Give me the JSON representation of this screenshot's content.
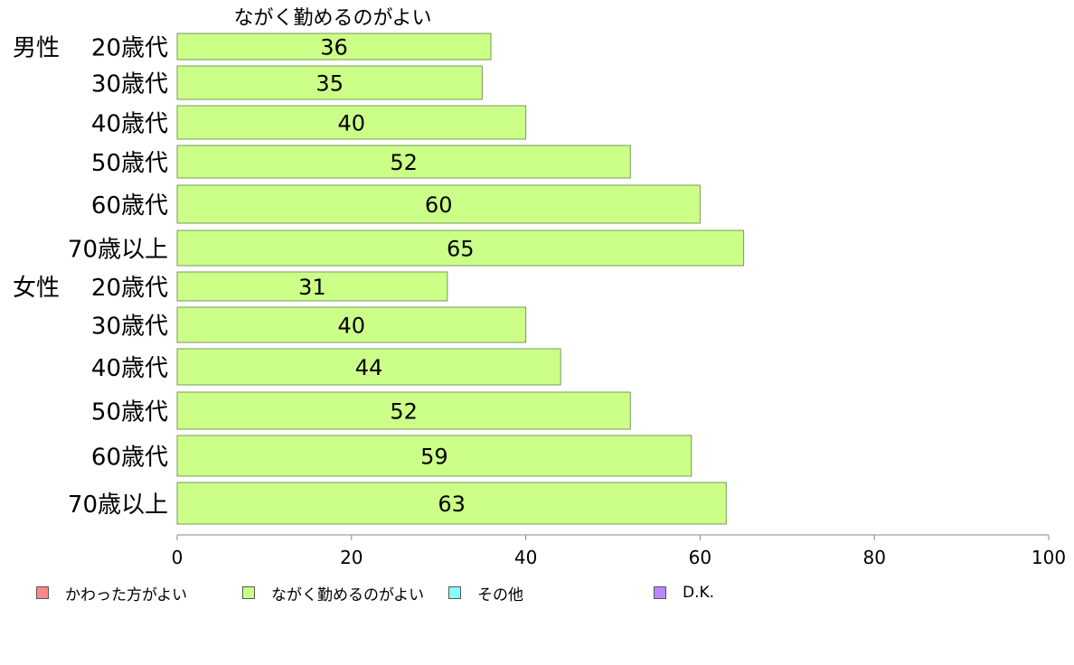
{
  "chart_data": {
    "type": "bar",
    "orientation": "horizontal",
    "title": "ながく勤めるのがよい",
    "groups": [
      {
        "label": "男性",
        "first_index": 0
      },
      {
        "label": "女性",
        "first_index": 6
      }
    ],
    "categories": [
      "20歳代",
      "30歳代",
      "40歳代",
      "50歳代",
      "60歳代",
      "70歳以上",
      "20歳代",
      "30歳代",
      "40歳代",
      "50歳代",
      "60歳代",
      "70歳以上"
    ],
    "series": [
      {
        "name": "ながく勤めるのがよい",
        "values": [
          36,
          35,
          40,
          52,
          60,
          65,
          31,
          40,
          44,
          52,
          59,
          63
        ],
        "color": "#ccff88"
      }
    ],
    "xlim": [
      0,
      100
    ],
    "xticks": [
      0,
      20,
      40,
      60,
      80,
      100
    ],
    "grid": false,
    "legend_position": "bottom",
    "legend": [
      {
        "name": "かわった方がよい",
        "color": "#ff8888"
      },
      {
        "name": "ながく勤めるのがよい",
        "color": "#ccff88"
      },
      {
        "name": "その他",
        "color": "#88ffff"
      },
      {
        "name": "D.K.",
        "color": "#bb88ff"
      }
    ]
  }
}
